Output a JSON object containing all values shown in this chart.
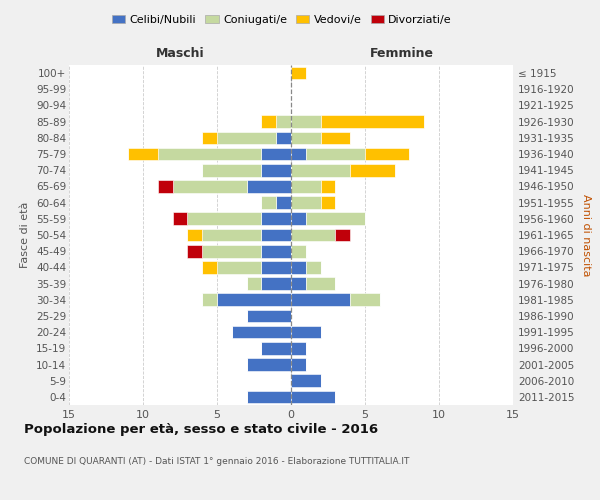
{
  "age_groups": [
    "0-4",
    "5-9",
    "10-14",
    "15-19",
    "20-24",
    "25-29",
    "30-34",
    "35-39",
    "40-44",
    "45-49",
    "50-54",
    "55-59",
    "60-64",
    "65-69",
    "70-74",
    "75-79",
    "80-84",
    "85-89",
    "90-94",
    "95-99",
    "100+"
  ],
  "birth_years": [
    "2011-2015",
    "2006-2010",
    "2001-2005",
    "1996-2000",
    "1991-1995",
    "1986-1990",
    "1981-1985",
    "1976-1980",
    "1971-1975",
    "1966-1970",
    "1961-1965",
    "1956-1960",
    "1951-1955",
    "1946-1950",
    "1941-1945",
    "1936-1940",
    "1931-1935",
    "1926-1930",
    "1921-1925",
    "1916-1920",
    "≤ 1915"
  ],
  "maschi": {
    "celibi": [
      3,
      0,
      3,
      2,
      4,
      3,
      5,
      2,
      2,
      2,
      2,
      2,
      1,
      3,
      2,
      2,
      1,
      0,
      0,
      0,
      0
    ],
    "coniugati": [
      0,
      0,
      0,
      0,
      0,
      0,
      1,
      1,
      3,
      4,
      4,
      5,
      1,
      5,
      4,
      7,
      4,
      1,
      0,
      0,
      0
    ],
    "vedovi": [
      0,
      0,
      0,
      0,
      0,
      0,
      0,
      0,
      1,
      0,
      1,
      0,
      0,
      0,
      0,
      2,
      1,
      1,
      0,
      0,
      0
    ],
    "divorziati": [
      0,
      0,
      0,
      0,
      0,
      0,
      0,
      0,
      0,
      1,
      0,
      1,
      0,
      1,
      0,
      0,
      0,
      0,
      0,
      0,
      0
    ]
  },
  "femmine": {
    "celibi": [
      3,
      2,
      1,
      1,
      2,
      0,
      4,
      1,
      1,
      0,
      0,
      1,
      0,
      0,
      0,
      1,
      0,
      0,
      0,
      0,
      0
    ],
    "coniugati": [
      0,
      0,
      0,
      0,
      0,
      0,
      2,
      2,
      1,
      1,
      3,
      4,
      2,
      2,
      4,
      4,
      2,
      2,
      0,
      0,
      0
    ],
    "vedovi": [
      0,
      0,
      0,
      0,
      0,
      0,
      0,
      0,
      0,
      0,
      0,
      0,
      1,
      1,
      3,
      3,
      2,
      7,
      0,
      0,
      1
    ],
    "divorziati": [
      0,
      0,
      0,
      0,
      0,
      0,
      0,
      0,
      0,
      0,
      1,
      0,
      0,
      0,
      0,
      0,
      0,
      0,
      0,
      0,
      0
    ]
  },
  "colors": {
    "celibi": "#4472c4",
    "coniugati": "#c5d9a0",
    "vedovi": "#ffc000",
    "divorziati": "#c0000a"
  },
  "legend_labels": [
    "Celibi/Nubili",
    "Coniugati/e",
    "Vedovi/e",
    "Divorziati/e"
  ],
  "title": "Popolazione per età, sesso e stato civile - 2016",
  "subtitle": "COMUNE DI QUARANTI (AT) - Dati ISTAT 1° gennaio 2016 - Elaborazione TUTTITALIA.IT",
  "xlabel_left": "Maschi",
  "xlabel_right": "Femmine",
  "ylabel_left": "Fasce di età",
  "ylabel_right": "Anni di nascita",
  "xlim": 15,
  "bg_color": "#f0f0f0",
  "plot_bg": "#ffffff"
}
